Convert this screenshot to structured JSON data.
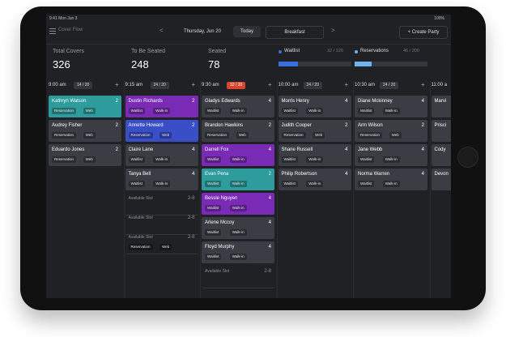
{
  "status": {
    "time": "9:41 Mon Jun 3",
    "battery": "100%"
  },
  "toolbar": {
    "menu": "Cover Flow",
    "prev": "<",
    "date": "Thursday, Jun 20",
    "today": "Today",
    "meal": "Breakfast",
    "next": ">",
    "create": "+ Create Party"
  },
  "stats": [
    {
      "label": "Total Covers",
      "value": "326"
    },
    {
      "label": "To Be Seated",
      "value": "248"
    },
    {
      "label": "Seated",
      "value": "78"
    }
  ],
  "progress": [
    {
      "label": "Waitlist",
      "count": "32 / 120",
      "color": "#3b6fe0"
    },
    {
      "label": "Reservations",
      "count": "46 / 200",
      "color": "#6fb3f0"
    }
  ],
  "columns": [
    {
      "time": "9:00 am",
      "count": "14 / 20",
      "add": "+",
      "cards": [
        {
          "name": "Kathryn Watson",
          "size": "2",
          "tags": [
            "Reservation",
            "Web"
          ],
          "color": "#2e9c9c"
        },
        {
          "name": "Audrey Fisher",
          "size": "2",
          "tags": [
            "Reservation",
            "Web"
          ]
        },
        {
          "name": "Eduardo Jones",
          "size": "2",
          "tags": [
            "Reservation",
            "Web"
          ]
        }
      ]
    },
    {
      "time": "9:15 am",
      "count": "24 / 20",
      "add": "+",
      "cards": [
        {
          "name": "Dustin Richards",
          "size": "2",
          "tags": [
            "Waitlist",
            "Walk-in"
          ],
          "color": "#7a2bb5"
        },
        {
          "name": "Annette Howard",
          "size": "2",
          "tags": [
            "Reservation",
            "Web"
          ],
          "color": "#3a4ec8"
        },
        {
          "name": "Claire Lane",
          "size": "4",
          "tags": [
            "Waitlist",
            "Walk-in"
          ]
        },
        {
          "name": "Tanya Bell",
          "size": "4",
          "tags": [
            "Waitlist",
            "Walk-in"
          ]
        },
        {
          "name": "Available Slot",
          "size": "2-8",
          "tags": []
        },
        {
          "name": "Available Slot",
          "size": "2-8",
          "tags": []
        },
        {
          "name": "Available Slot",
          "size": "2-8",
          "tags": [
            "Reservation",
            "Web"
          ]
        }
      ]
    },
    {
      "time": "9:30 am",
      "count": "32 / 20",
      "count_color": "#d9452b",
      "add": "+",
      "cards": [
        {
          "name": "Gladys Edwards",
          "size": "4",
          "tags": [
            "Waitlist",
            "Walk-in"
          ]
        },
        {
          "name": "Brandon Hawkins",
          "size": "2",
          "tags": [
            "Reservation",
            "Web"
          ]
        },
        {
          "name": "Darrell Fox",
          "size": "4",
          "tags": [
            "Waitlist",
            "Walk-in"
          ],
          "color": "#7a2bb5"
        },
        {
          "name": "Evan Pena",
          "size": "2",
          "tags": [
            "Waitlist",
            "Walk-in"
          ],
          "color": "#2e9c9c"
        },
        {
          "name": "Bessie Nguyen",
          "size": "4",
          "tags": [
            "Waitlist",
            "Walk-in"
          ],
          "color": "#7a2bb5"
        },
        {
          "name": "Arlene Mccoy",
          "size": "4",
          "tags": [
            "Waitlist",
            "Walk-in"
          ]
        },
        {
          "name": "Floyd Murphy",
          "size": "4",
          "tags": [
            "Waitlist",
            "Walk-in"
          ]
        },
        {
          "name": "Available Slot",
          "size": "2-8",
          "tags": []
        }
      ]
    },
    {
      "time": "10:00 am",
      "count": "24 / 20",
      "add": "+",
      "cards": [
        {
          "name": "Morris Henry",
          "size": "4",
          "tags": [
            "Waitlist",
            "Walk-in"
          ]
        },
        {
          "name": "Judith Cooper",
          "size": "2",
          "tags": [
            "Reservation",
            "Web"
          ]
        },
        {
          "name": "Shane Russell",
          "size": "4",
          "tags": [
            "Waitlist",
            "Walk-in"
          ]
        },
        {
          "name": "Philip Robertson",
          "size": "4",
          "tags": [
            "Waitlist",
            "Walk-in"
          ]
        }
      ]
    },
    {
      "time": "10:30 am",
      "count": "24 / 20",
      "add": "+",
      "cards": [
        {
          "name": "Diane Mckinney",
          "size": "4",
          "tags": [
            "Waitlist",
            "Walk-in"
          ]
        },
        {
          "name": "Arm Wilson",
          "size": "2",
          "tags": [
            "Reservation",
            "Web"
          ]
        },
        {
          "name": "Jane Webb",
          "size": "4",
          "tags": [
            "Waitlist",
            "Walk-in"
          ]
        },
        {
          "name": "Norma Warren",
          "size": "4",
          "tags": [
            "Waitlist",
            "Walk-in"
          ]
        }
      ]
    },
    {
      "time": "11:00 a",
      "cards": [
        {
          "name": "Marvi",
          "tags": []
        },
        {
          "name": "Prisci",
          "tags": []
        },
        {
          "name": "Cody",
          "tags": []
        },
        {
          "name": "Devon",
          "tags": []
        }
      ]
    }
  ]
}
